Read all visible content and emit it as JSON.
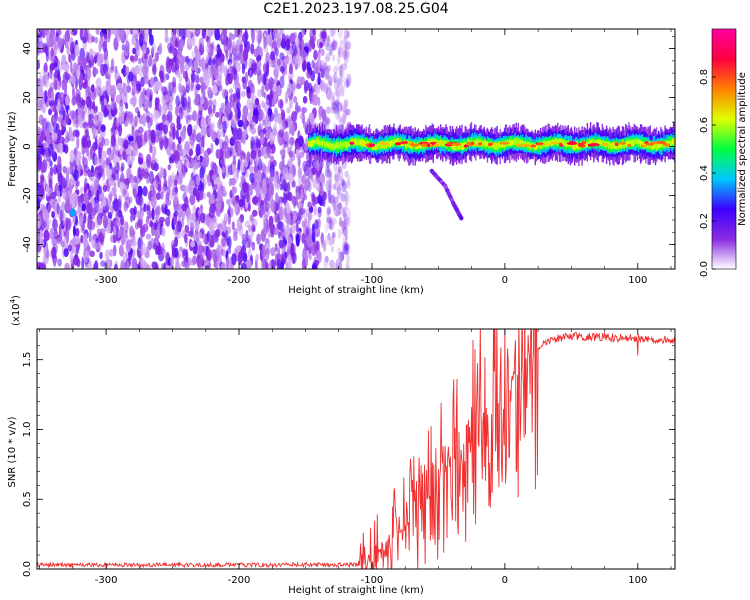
{
  "chart_data": [
    {
      "type": "heatmap",
      "title": "C2E1.2023.197.08.25.G04",
      "xlabel": "Height of straight line (km)",
      "ylabel": "Frequency (Hz)",
      "xlim": [
        -352,
        128
      ],
      "ylim": [
        -50,
        48
      ],
      "x_ticks": [
        -300,
        -200,
        -100,
        0,
        100
      ],
      "y_ticks": [
        -40,
        -20,
        0,
        20,
        40
      ],
      "colorbar": {
        "label": "Normalized spectral amplitude",
        "range": [
          0,
          1
        ],
        "ticks": [
          "0.0",
          "0.2",
          "0.4",
          "0.6",
          "0.8"
        ],
        "tick_values": [
          0,
          0.2,
          0.4,
          0.6,
          0.8
        ],
        "colors": [
          "#ffffff",
          "#8a2be2",
          "#3c00ff",
          "#00c8ff",
          "#00ff40",
          "#e0ff00",
          "#ff8000",
          "#ff0040",
          "#ff00a0"
        ]
      },
      "regions": {
        "noise_x": [
          -352,
          -117
        ],
        "signal_x": [
          -148,
          128
        ],
        "signal_center_hz": 1,
        "branch": [
          [
            -55,
            -10
          ],
          [
            -45,
            -16
          ],
          [
            -38,
            -24
          ],
          [
            -32,
            -30
          ]
        ]
      },
      "grid": false
    },
    {
      "type": "line",
      "xlabel": "Height of straight line (km)",
      "ylabel": "SNR (10 * v/v)",
      "scale_label": "(x10",
      "scale_exp": "4",
      "scale_close": ")",
      "xlim": [
        -352,
        128
      ],
      "ylim": [
        0,
        1.72
      ],
      "x_ticks": [
        -300,
        -200,
        -100,
        0,
        100
      ],
      "y_ticks": [
        "0.0",
        "0.5",
        "1.0",
        "1.5"
      ],
      "y_tick_values": [
        0,
        0.5,
        1.0,
        1.5
      ],
      "series": [
        {
          "color": "#f03030",
          "envelope": [
            [
              -352,
              0.03
            ],
            [
              -110,
              0.03
            ],
            [
              -95,
              0.1
            ],
            [
              -80,
              0.25
            ],
            [
              -60,
              0.5
            ],
            [
              -40,
              0.75
            ],
            [
              -20,
              1.0
            ],
            [
              0,
              1.25
            ],
            [
              15,
              1.5
            ],
            [
              30,
              1.63
            ],
            [
              50,
              1.67
            ],
            [
              128,
              1.64
            ]
          ]
        }
      ],
      "grid": false
    }
  ]
}
